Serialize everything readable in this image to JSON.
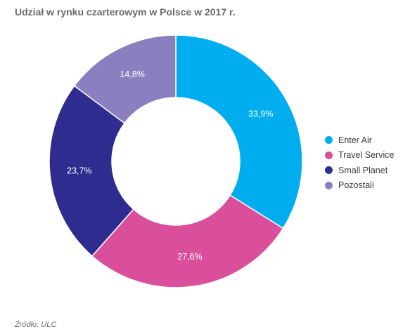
{
  "title": "Udział w rynku czarterowym w Polsce w 2017 r.",
  "source": "Źródło: ULC",
  "chart_data": {
    "type": "pie",
    "donut": true,
    "title": "Udział w rynku czarterowym w Polsce w 2017 r.",
    "legend_position": "right",
    "categories": [
      "Enter Air",
      "Travel Service",
      "Small Planet",
      "Pozostali"
    ],
    "values": [
      33.9,
      27.6,
      23.7,
      14.8
    ],
    "labels": [
      "33,9%",
      "27,6%",
      "23,7%",
      "14,8%"
    ],
    "colors": [
      "#00aeef",
      "#d94f9c",
      "#2e2d8f",
      "#8b80bf"
    ]
  }
}
